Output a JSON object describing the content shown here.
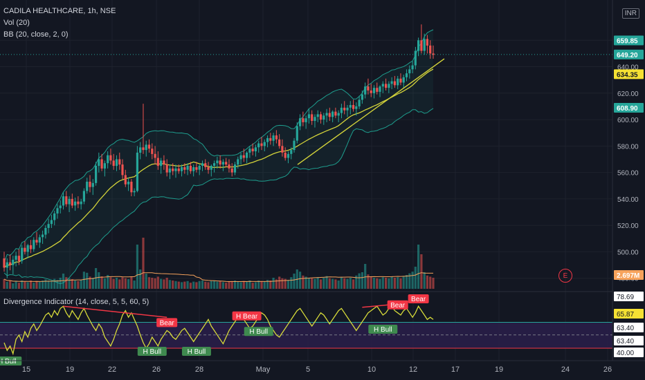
{
  "header": {
    "symbol": "CADILA HEALTHCARE, 1h, NSE",
    "vol_label": "Vol (20)",
    "bb_label": "BB (20, close, 2, 0)",
    "currency": "INR",
    "osc_label": "Divergence Indicator (14, close, 5, 5, 60, 5)"
  },
  "earnings_marker": {
    "label": "E"
  },
  "colors": {
    "up": "#26a69a",
    "down": "#ef5350",
    "ma": "#d4d43a",
    "band": "#1e9e8e",
    "osc": "#d8dc3a",
    "bear": "#f23645",
    "bull": "#3f8a4f",
    "osc_band": "#2a1f4a"
  },
  "chart_data": {
    "type": "candlestick",
    "price_axis": {
      "ticks": [
        480,
        500,
        520,
        540,
        560,
        580,
        600,
        620,
        640,
        660
      ],
      "tick_labels": [
        "480.00",
        "500.00",
        "520.00",
        "540.00",
        "560.00",
        "580.00",
        "600.00",
        "620.00",
        "640.00",
        "660.00"
      ]
    },
    "x_ticks": [
      "15",
      "19",
      "22",
      "26",
      "28",
      "May",
      "5",
      "10",
      "12",
      "17",
      "19",
      "24",
      "26"
    ],
    "price_labels": [
      {
        "value": 659.85,
        "text": "659.85",
        "color": "#26a69a"
      },
      {
        "value": 649.2,
        "text": "649.20",
        "color": "#26a69a"
      },
      {
        "value": 634.35,
        "text": "634.35",
        "color": "#f5e133"
      },
      {
        "value": 608.9,
        "text": "608.90",
        "color": "#26a69a"
      }
    ],
    "volume_label": "2.697M",
    "candles": [
      [
        495,
        500,
        485,
        488
      ],
      [
        488,
        495,
        480,
        492
      ],
      [
        492,
        498,
        486,
        490
      ],
      [
        490,
        497,
        483,
        494
      ],
      [
        494,
        500,
        489,
        497
      ],
      [
        497,
        502,
        490,
        493
      ],
      [
        493,
        505,
        491,
        503
      ],
      [
        503,
        508,
        498,
        500
      ],
      [
        500,
        506,
        495,
        505
      ],
      [
        505,
        509,
        499,
        502
      ],
      [
        502,
        511,
        500,
        509
      ],
      [
        509,
        515,
        505,
        507
      ],
      [
        507,
        513,
        503,
        511
      ],
      [
        511,
        516,
        506,
        513
      ],
      [
        513,
        520,
        510,
        518
      ],
      [
        518,
        525,
        514,
        521
      ],
      [
        521,
        528,
        518,
        524
      ],
      [
        524,
        531,
        520,
        529
      ],
      [
        529,
        536,
        525,
        533
      ],
      [
        533,
        539,
        529,
        535
      ],
      [
        535,
        545,
        532,
        542
      ],
      [
        542,
        546,
        534,
        536
      ],
      [
        536,
        542,
        530,
        540
      ],
      [
        540,
        544,
        533,
        535
      ],
      [
        535,
        541,
        531,
        538
      ],
      [
        538,
        542,
        533,
        536
      ],
      [
        536,
        540,
        532,
        538
      ],
      [
        538,
        548,
        536,
        546
      ],
      [
        546,
        556,
        544,
        553
      ],
      [
        553,
        558,
        545,
        549
      ],
      [
        549,
        555,
        543,
        552
      ],
      [
        552,
        568,
        550,
        565
      ],
      [
        565,
        575,
        560,
        570
      ],
      [
        570,
        574,
        561,
        563
      ],
      [
        563,
        569,
        557,
        567
      ],
      [
        567,
        576,
        563,
        573
      ],
      [
        573,
        578,
        566,
        569
      ],
      [
        569,
        574,
        562,
        565
      ],
      [
        565,
        573,
        561,
        570
      ],
      [
        570,
        575,
        562,
        566
      ],
      [
        566,
        570,
        555,
        558
      ],
      [
        558,
        562,
        549,
        551
      ],
      [
        551,
        556,
        546,
        553
      ],
      [
        553,
        555,
        542,
        545
      ],
      [
        545,
        548,
        542,
        546
      ],
      [
        546,
        580,
        545,
        575
      ],
      [
        575,
        583,
        570,
        579
      ],
      [
        579,
        612,
        574,
        577
      ],
      [
        577,
        584,
        572,
        581
      ],
      [
        581,
        585,
        575,
        578
      ],
      [
        578,
        582,
        570,
        574
      ],
      [
        574,
        580,
        566,
        571
      ],
      [
        571,
        576,
        562,
        565
      ],
      [
        565,
        571,
        559,
        569
      ],
      [
        569,
        573,
        562,
        566
      ],
      [
        566,
        570,
        557,
        560
      ],
      [
        560,
        566,
        555,
        563
      ],
      [
        563,
        567,
        558,
        561
      ],
      [
        561,
        566,
        556,
        563
      ],
      [
        563,
        566,
        559,
        561
      ],
      [
        561,
        566,
        557,
        564
      ],
      [
        564,
        567,
        559,
        562
      ],
      [
        562,
        567,
        558,
        565
      ],
      [
        565,
        568,
        559,
        561
      ],
      [
        561,
        566,
        557,
        564
      ],
      [
        564,
        568,
        560,
        562
      ],
      [
        562,
        566,
        558,
        565
      ],
      [
        565,
        569,
        561,
        567
      ],
      [
        567,
        570,
        562,
        564
      ],
      [
        564,
        568,
        559,
        562
      ],
      [
        562,
        566,
        557,
        565
      ],
      [
        565,
        569,
        560,
        567
      ],
      [
        567,
        572,
        563,
        569
      ],
      [
        569,
        573,
        563,
        566
      ],
      [
        566,
        570,
        561,
        568
      ],
      [
        568,
        571,
        564,
        566
      ],
      [
        566,
        570,
        560,
        563
      ],
      [
        563,
        567,
        557,
        560
      ],
      [
        560,
        568,
        558,
        566
      ],
      [
        566,
        572,
        563,
        570
      ],
      [
        570,
        575,
        566,
        573
      ],
      [
        573,
        578,
        568,
        571
      ],
      [
        571,
        576,
        567,
        575
      ],
      [
        575,
        580,
        571,
        578
      ],
      [
        578,
        582,
        573,
        576
      ],
      [
        576,
        581,
        572,
        579
      ],
      [
        579,
        584,
        575,
        582
      ],
      [
        582,
        587,
        577,
        580
      ],
      [
        580,
        585,
        576,
        583
      ],
      [
        583,
        588,
        579,
        586
      ],
      [
        586,
        590,
        581,
        584
      ],
      [
        584,
        590,
        580,
        588
      ],
      [
        588,
        592,
        582,
        585
      ],
      [
        585,
        589,
        578,
        580
      ],
      [
        580,
        585,
        572,
        575
      ],
      [
        575,
        579,
        569,
        571
      ],
      [
        571,
        576,
        567,
        574
      ],
      [
        574,
        579,
        570,
        577
      ],
      [
        577,
        586,
        575,
        584
      ],
      [
        584,
        598,
        582,
        595
      ],
      [
        595,
        604,
        592,
        601
      ],
      [
        601,
        606,
        595,
        598
      ],
      [
        598,
        603,
        593,
        601
      ],
      [
        601,
        608,
        597,
        604
      ],
      [
        604,
        607,
        596,
        599
      ],
      [
        599,
        604,
        594,
        602
      ],
      [
        602,
        607,
        598,
        604
      ],
      [
        604,
        606,
        597,
        600
      ],
      [
        600,
        605,
        596,
        603
      ],
      [
        603,
        608,
        598,
        605
      ],
      [
        605,
        609,
        599,
        602
      ],
      [
        602,
        607,
        598,
        606
      ],
      [
        606,
        609,
        601,
        603
      ],
      [
        603,
        607,
        598,
        605
      ],
      [
        605,
        612,
        601,
        609
      ],
      [
        609,
        614,
        604,
        607
      ],
      [
        607,
        611,
        602,
        609
      ],
      [
        609,
        614,
        604,
        611
      ],
      [
        611,
        615,
        606,
        608
      ],
      [
        608,
        613,
        603,
        610
      ],
      [
        610,
        618,
        608,
        615
      ],
      [
        615,
        622,
        612,
        619
      ],
      [
        619,
        628,
        616,
        625
      ],
      [
        625,
        631,
        619,
        622
      ],
      [
        622,
        627,
        617,
        620
      ],
      [
        620,
        626,
        616,
        624
      ],
      [
        624,
        628,
        619,
        621
      ],
      [
        621,
        626,
        617,
        625
      ],
      [
        625,
        629,
        620,
        627
      ],
      [
        627,
        631,
        622,
        624
      ],
      [
        624,
        629,
        620,
        627
      ],
      [
        627,
        632,
        623,
        629
      ],
      [
        629,
        633,
        624,
        626
      ],
      [
        626,
        633,
        623,
        631
      ],
      [
        631,
        635,
        626,
        628
      ],
      [
        628,
        634,
        624,
        632
      ],
      [
        632,
        638,
        629,
        635
      ],
      [
        635,
        641,
        631,
        638
      ],
      [
        638,
        644,
        635,
        641
      ],
      [
        641,
        655,
        638,
        652
      ],
      [
        652,
        662,
        648,
        660
      ],
      [
        660,
        672,
        650,
        652
      ],
      [
        652,
        665,
        649,
        661
      ],
      [
        661,
        664,
        650,
        656
      ],
      [
        656,
        660,
        646,
        650
      ],
      [
        650,
        656,
        646,
        649
      ]
    ],
    "volume_relative": [
      0.35,
      0.25,
      0.3,
      0.2,
      0.28,
      0.22,
      0.3,
      0.26,
      0.24,
      0.3,
      0.22,
      0.28,
      0.25,
      0.3,
      0.34,
      0.3,
      0.28,
      0.36,
      0.32,
      0.4,
      0.55,
      0.42,
      0.38,
      0.35,
      0.3,
      0.28,
      0.32,
      0.62,
      0.58,
      0.44,
      0.4,
      0.75,
      0.6,
      0.45,
      0.38,
      0.5,
      0.42,
      0.36,
      0.4,
      0.34,
      0.42,
      0.38,
      0.35,
      0.45,
      0.3,
      1.6,
      0.7,
      1.85,
      0.55,
      0.42,
      0.4,
      0.38,
      0.44,
      0.36,
      0.34,
      0.4,
      0.32,
      0.3,
      0.28,
      0.26,
      0.24,
      0.26,
      0.28,
      0.22,
      0.26,
      0.24,
      0.28,
      0.3,
      0.26,
      0.24,
      0.28,
      0.3,
      0.26,
      0.28,
      0.24,
      0.22,
      0.26,
      0.28,
      0.3,
      0.26,
      0.24,
      0.28,
      0.26,
      0.3,
      0.22,
      0.24,
      0.3,
      0.28,
      0.26,
      0.32,
      0.3,
      0.4,
      0.34,
      0.44,
      0.38,
      0.36,
      0.32,
      0.42,
      0.55,
      0.7,
      0.62,
      0.48,
      0.44,
      0.4,
      0.38,
      0.36,
      0.42,
      0.34,
      0.4,
      0.46,
      0.38,
      0.36,
      0.34,
      0.3,
      0.42,
      0.38,
      0.36,
      0.4,
      0.34,
      0.48,
      0.56,
      0.6,
      0.9,
      0.52,
      0.44,
      0.4,
      0.38,
      0.36,
      0.42,
      0.4,
      0.38,
      0.44,
      0.4,
      0.42,
      0.38,
      0.46,
      0.5,
      0.56,
      0.62,
      0.8,
      1.6,
      1.25,
      0.6,
      0.48,
      0.44,
      0.4
    ],
    "oscillator": {
      "levels": [
        {
          "value": 78.69,
          "text": "78.69",
          "color": "#ffffff"
        },
        {
          "value": 65.87,
          "text": "65.87",
          "color": "#f5e133"
        },
        {
          "value": 63.4,
          "text": "63.40",
          "color": "#ffffff"
        },
        {
          "value": 63.4,
          "text": "63.40",
          "color": "#ffffff"
        },
        {
          "value": 40.0,
          "text": "40.00",
          "color": "#ffffff"
        }
      ],
      "values": [
        45,
        38,
        42,
        35,
        48,
        52,
        46,
        55,
        50,
        58,
        62,
        56,
        60,
        65,
        70,
        72,
        68,
        74,
        70,
        76,
        78,
        72,
        68,
        74,
        70,
        66,
        72,
        76,
        70,
        65,
        60,
        56,
        62,
        58,
        50,
        46,
        42,
        48,
        56,
        62,
        70,
        74,
        68,
        72,
        66,
        60,
        52,
        45,
        40,
        44,
        50,
        46,
        42,
        48,
        52,
        56,
        54,
        50,
        48,
        52,
        56,
        58,
        54,
        50,
        46,
        50,
        54,
        58,
        62,
        66,
        60,
        56,
        52,
        48,
        44,
        50,
        56,
        60,
        64,
        68,
        70,
        66,
        62,
        58,
        60,
        64,
        68,
        72,
        70,
        66,
        60,
        56,
        52,
        50,
        54,
        58,
        62,
        66,
        70,
        74,
        76,
        72,
        68,
        64,
        60,
        64,
        68,
        72,
        70,
        66,
        62,
        66,
        70,
        74,
        76,
        72,
        68,
        64,
        60,
        56,
        60,
        64,
        68,
        72,
        74,
        76,
        78,
        74,
        70,
        72,
        76,
        78,
        74,
        72,
        70,
        74,
        76,
        72,
        68,
        72,
        78,
        74,
        70,
        66,
        68,
        66
      ],
      "markers": [
        {
          "label": "H Bull",
          "type": "bull",
          "i": 1
        },
        {
          "label": "Bear",
          "type": "bear",
          "i": 55
        },
        {
          "label": "H Bull",
          "type": "bull",
          "i": 50
        },
        {
          "label": "H Bull",
          "type": "bull",
          "i": 65
        },
        {
          "label": "H Bear",
          "type": "bear",
          "i": 82
        },
        {
          "label": "H Bull",
          "type": "bull",
          "i": 86
        },
        {
          "label": "H Bull",
          "type": "bull",
          "i": 128
        },
        {
          "label": "Bear",
          "type": "bear",
          "i": 133
        },
        {
          "label": "Bear",
          "type": "bear",
          "i": 140
        }
      ]
    }
  }
}
